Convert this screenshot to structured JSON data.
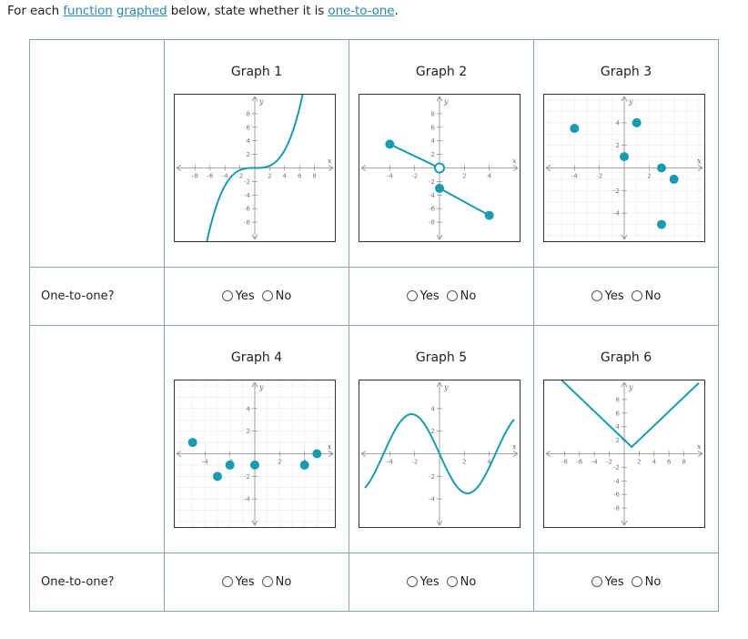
{
  "prompt": {
    "prefix": "For each ",
    "link1": "function",
    "space": " ",
    "link2": "graphed",
    "middle": " below, state whether it is ",
    "link3": "one-to-one",
    "suffix": "."
  },
  "row_label": "One-to-one?",
  "options": {
    "yes": "Yes",
    "no": "No"
  },
  "colors": {
    "curve": "#1a9bb0",
    "border": "#8aa3ad",
    "link": "#2a86b3"
  },
  "graphs": [
    {
      "title": "Graph 1",
      "xlim": [
        -10,
        10
      ],
      "ylim": [
        -10,
        10
      ],
      "grid": false,
      "xticks": [
        -8,
        -6,
        -4,
        -2,
        2,
        4,
        6,
        8
      ],
      "yticks": [
        -8,
        -6,
        -4,
        -2,
        2,
        4,
        6,
        8
      ],
      "xlabel": "x",
      "ylabel": "y",
      "curve": "cubic",
      "points": [],
      "open_points": [],
      "segments": []
    },
    {
      "title": "Graph 2",
      "xlim": [
        -6,
        6
      ],
      "ylim": [
        -10,
        10
      ],
      "grid": false,
      "xticks": [
        -4,
        -2,
        2,
        4
      ],
      "yticks": [
        -8,
        -6,
        -4,
        -2,
        2,
        4,
        6,
        8
      ],
      "xlabel": "x",
      "ylabel": "y",
      "curve": null,
      "segments": [
        [
          [
            -4,
            3.5
          ],
          [
            0,
            0
          ]
        ],
        [
          [
            0,
            -3
          ],
          [
            4,
            -7
          ]
        ]
      ],
      "points": [
        [
          -4,
          3.5
        ],
        [
          0,
          -3
        ],
        [
          4,
          -7
        ]
      ],
      "open_points": [
        [
          0,
          0
        ]
      ]
    },
    {
      "title": "Graph 3",
      "xlim": [
        -6,
        6
      ],
      "ylim": [
        -6,
        6
      ],
      "grid": true,
      "xticks": [
        -4,
        -2,
        2
      ],
      "yticks": [
        -4,
        -2,
        2,
        4
      ],
      "xlabel": "x",
      "ylabel": "y",
      "curve": null,
      "segments": [],
      "open_points": [],
      "points": [
        [
          -4,
          3.5
        ],
        [
          0,
          1
        ],
        [
          1,
          4
        ],
        [
          3,
          0
        ],
        [
          4,
          -1
        ],
        [
          3,
          -5
        ]
      ]
    },
    {
      "title": "Graph 4",
      "xlim": [
        -6,
        6
      ],
      "ylim": [
        -6,
        6
      ],
      "grid": true,
      "xticks": [
        -4,
        -2,
        2,
        4
      ],
      "yticks": [
        -4,
        -2,
        2,
        4
      ],
      "xlabel": "x",
      "ylabel": "y",
      "curve": null,
      "segments": [],
      "open_points": [],
      "points": [
        [
          -5,
          1
        ],
        [
          -3,
          -2
        ],
        [
          -2,
          -1
        ],
        [
          0,
          -1
        ],
        [
          4,
          -1
        ],
        [
          5,
          0
        ]
      ]
    },
    {
      "title": "Graph 5",
      "xlim": [
        -6,
        6
      ],
      "ylim": [
        -6,
        6
      ],
      "grid": false,
      "xticks": [
        -4,
        -2,
        2,
        4
      ],
      "yticks": [
        -4,
        -2,
        2,
        4
      ],
      "xlabel": "x",
      "ylabel": "y",
      "curve": "sine",
      "points": [],
      "open_points": [],
      "segments": []
    },
    {
      "title": "Graph 6",
      "xlim": [
        -10,
        10
      ],
      "ylim": [
        -10,
        10
      ],
      "grid": false,
      "xticks": [
        -8,
        -6,
        -4,
        -2,
        2,
        4,
        6,
        8
      ],
      "yticks": [
        -8,
        -6,
        -4,
        -2,
        2,
        4,
        6,
        8
      ],
      "xlabel": "x",
      "ylabel": "y",
      "curve": "abs",
      "points": [],
      "open_points": [],
      "segments": []
    }
  ]
}
